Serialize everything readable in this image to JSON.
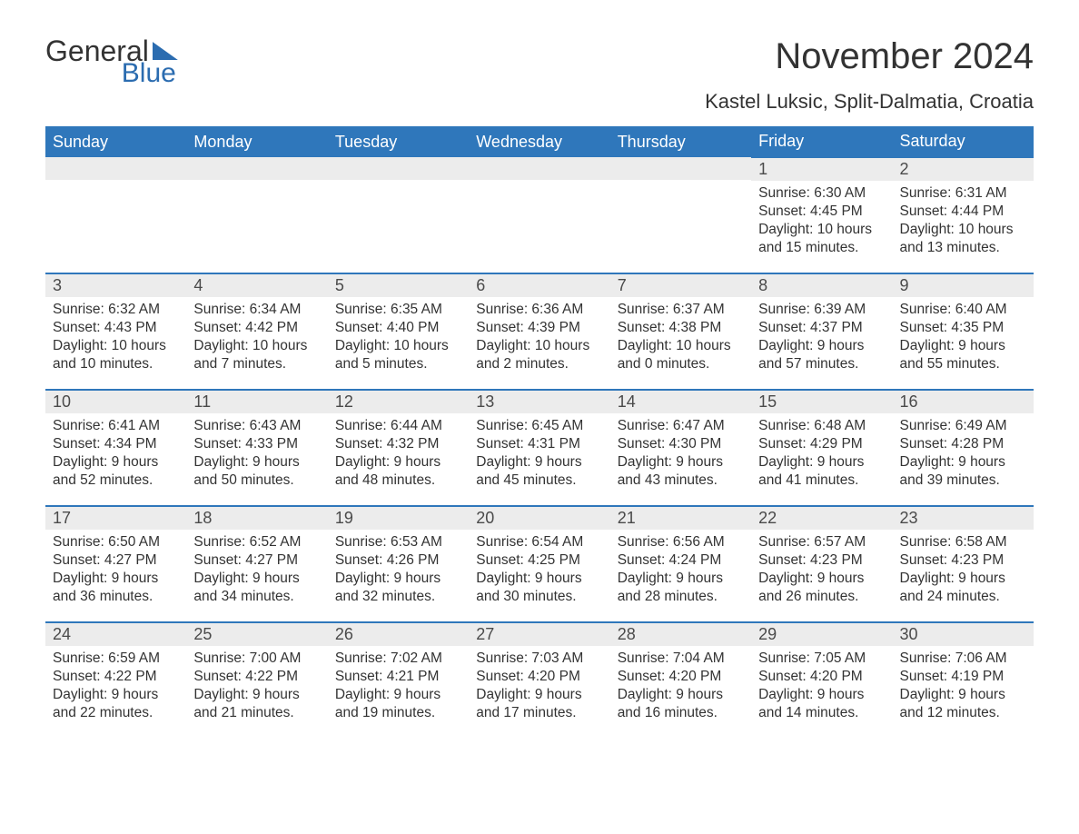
{
  "logo": {
    "line1": "General",
    "line2": "Blue"
  },
  "title": "November 2024",
  "location": "Kastel Luksic, Split-Dalmatia, Croatia",
  "colors": {
    "header_bg": "#2f77bb",
    "header_text": "#ffffff",
    "daynum_bg": "#ececec",
    "row_border": "#2f77bb",
    "text": "#333333",
    "logo_blue": "#2b6cb0"
  },
  "days_of_week": [
    "Sunday",
    "Monday",
    "Tuesday",
    "Wednesday",
    "Thursday",
    "Friday",
    "Saturday"
  ],
  "labels": {
    "sunrise": "Sunrise: ",
    "sunset": "Sunset: ",
    "daylight": "Daylight: "
  },
  "weeks": [
    [
      null,
      null,
      null,
      null,
      null,
      {
        "n": "1",
        "sunrise": "6:30 AM",
        "sunset": "4:45 PM",
        "daylight": "10 hours and 15 minutes."
      },
      {
        "n": "2",
        "sunrise": "6:31 AM",
        "sunset": "4:44 PM",
        "daylight": "10 hours and 13 minutes."
      }
    ],
    [
      {
        "n": "3",
        "sunrise": "6:32 AM",
        "sunset": "4:43 PM",
        "daylight": "10 hours and 10 minutes."
      },
      {
        "n": "4",
        "sunrise": "6:34 AM",
        "sunset": "4:42 PM",
        "daylight": "10 hours and 7 minutes."
      },
      {
        "n": "5",
        "sunrise": "6:35 AM",
        "sunset": "4:40 PM",
        "daylight": "10 hours and 5 minutes."
      },
      {
        "n": "6",
        "sunrise": "6:36 AM",
        "sunset": "4:39 PM",
        "daylight": "10 hours and 2 minutes."
      },
      {
        "n": "7",
        "sunrise": "6:37 AM",
        "sunset": "4:38 PM",
        "daylight": "10 hours and 0 minutes."
      },
      {
        "n": "8",
        "sunrise": "6:39 AM",
        "sunset": "4:37 PM",
        "daylight": "9 hours and 57 minutes."
      },
      {
        "n": "9",
        "sunrise": "6:40 AM",
        "sunset": "4:35 PM",
        "daylight": "9 hours and 55 minutes."
      }
    ],
    [
      {
        "n": "10",
        "sunrise": "6:41 AM",
        "sunset": "4:34 PM",
        "daylight": "9 hours and 52 minutes."
      },
      {
        "n": "11",
        "sunrise": "6:43 AM",
        "sunset": "4:33 PM",
        "daylight": "9 hours and 50 minutes."
      },
      {
        "n": "12",
        "sunrise": "6:44 AM",
        "sunset": "4:32 PM",
        "daylight": "9 hours and 48 minutes."
      },
      {
        "n": "13",
        "sunrise": "6:45 AM",
        "sunset": "4:31 PM",
        "daylight": "9 hours and 45 minutes."
      },
      {
        "n": "14",
        "sunrise": "6:47 AM",
        "sunset": "4:30 PM",
        "daylight": "9 hours and 43 minutes."
      },
      {
        "n": "15",
        "sunrise": "6:48 AM",
        "sunset": "4:29 PM",
        "daylight": "9 hours and 41 minutes."
      },
      {
        "n": "16",
        "sunrise": "6:49 AM",
        "sunset": "4:28 PM",
        "daylight": "9 hours and 39 minutes."
      }
    ],
    [
      {
        "n": "17",
        "sunrise": "6:50 AM",
        "sunset": "4:27 PM",
        "daylight": "9 hours and 36 minutes."
      },
      {
        "n": "18",
        "sunrise": "6:52 AM",
        "sunset": "4:27 PM",
        "daylight": "9 hours and 34 minutes."
      },
      {
        "n": "19",
        "sunrise": "6:53 AM",
        "sunset": "4:26 PM",
        "daylight": "9 hours and 32 minutes."
      },
      {
        "n": "20",
        "sunrise": "6:54 AM",
        "sunset": "4:25 PM",
        "daylight": "9 hours and 30 minutes."
      },
      {
        "n": "21",
        "sunrise": "6:56 AM",
        "sunset": "4:24 PM",
        "daylight": "9 hours and 28 minutes."
      },
      {
        "n": "22",
        "sunrise": "6:57 AM",
        "sunset": "4:23 PM",
        "daylight": "9 hours and 26 minutes."
      },
      {
        "n": "23",
        "sunrise": "6:58 AM",
        "sunset": "4:23 PM",
        "daylight": "9 hours and 24 minutes."
      }
    ],
    [
      {
        "n": "24",
        "sunrise": "6:59 AM",
        "sunset": "4:22 PM",
        "daylight": "9 hours and 22 minutes."
      },
      {
        "n": "25",
        "sunrise": "7:00 AM",
        "sunset": "4:22 PM",
        "daylight": "9 hours and 21 minutes."
      },
      {
        "n": "26",
        "sunrise": "7:02 AM",
        "sunset": "4:21 PM",
        "daylight": "9 hours and 19 minutes."
      },
      {
        "n": "27",
        "sunrise": "7:03 AM",
        "sunset": "4:20 PM",
        "daylight": "9 hours and 17 minutes."
      },
      {
        "n": "28",
        "sunrise": "7:04 AM",
        "sunset": "4:20 PM",
        "daylight": "9 hours and 16 minutes."
      },
      {
        "n": "29",
        "sunrise": "7:05 AM",
        "sunset": "4:20 PM",
        "daylight": "9 hours and 14 minutes."
      },
      {
        "n": "30",
        "sunrise": "7:06 AM",
        "sunset": "4:19 PM",
        "daylight": "9 hours and 12 minutes."
      }
    ]
  ]
}
